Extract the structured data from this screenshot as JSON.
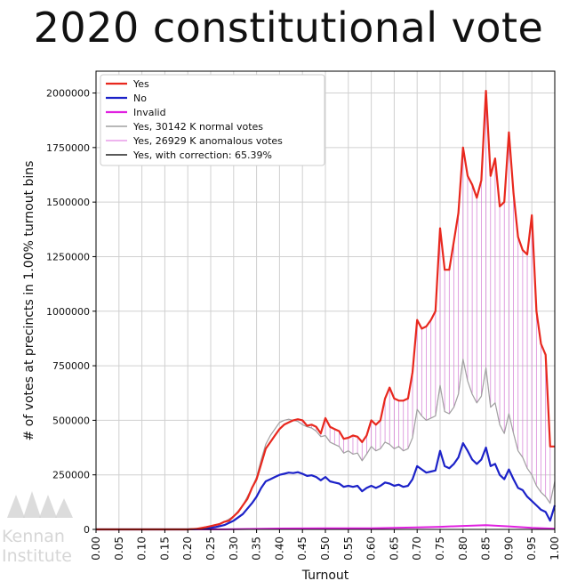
{
  "slide": {
    "title": "2020 constitutional vote"
  },
  "logo": {
    "line1": "Kennan",
    "line2": "Institute"
  },
  "chart_data": {
    "type": "line",
    "xlabel": "Turnout",
    "ylabel": "# of votes at precincts in 1.00% turnout bins",
    "xlim": [
      0.0,
      1.0
    ],
    "ylim": [
      0,
      2100000
    ],
    "grid": true,
    "legend_position": "top-left",
    "x_ticks": [
      "0.00",
      "0.05",
      "0.10",
      "0.15",
      "0.20",
      "0.25",
      "0.30",
      "0.35",
      "0.40",
      "0.45",
      "0.50",
      "0.55",
      "0.60",
      "0.65",
      "0.70",
      "0.75",
      "0.80",
      "0.85",
      "0.90",
      "0.95",
      "1.00"
    ],
    "y_ticks": [
      "0",
      "250000",
      "500000",
      "750000",
      "1000000",
      "1250000",
      "1500000",
      "1750000",
      "2000000"
    ],
    "legend": [
      {
        "label": "Yes",
        "color": "#e8281e",
        "style": "line"
      },
      {
        "label": "No",
        "color": "#1c22c8",
        "style": "line"
      },
      {
        "label": "Invalid",
        "color": "#e020e0",
        "style": "line"
      },
      {
        "label": "Yes, 30142 K normal votes",
        "color": "#a0a0a0",
        "style": "line"
      },
      {
        "label": "Yes, 26929 K anomalous votes",
        "color": "#e89be8",
        "style": "line"
      },
      {
        "label": "Yes, with correction: 65.39%",
        "color": "#222222",
        "style": "line"
      }
    ],
    "series": [
      {
        "name": "Yes",
        "color": "#e8281e",
        "points": [
          [
            0.0,
            0
          ],
          [
            0.2,
            0
          ],
          [
            0.22,
            3000
          ],
          [
            0.24,
            10000
          ],
          [
            0.25,
            15000
          ],
          [
            0.26,
            20000
          ],
          [
            0.27,
            25000
          ],
          [
            0.28,
            35000
          ],
          [
            0.29,
            40000
          ],
          [
            0.3,
            60000
          ],
          [
            0.31,
            80000
          ],
          [
            0.32,
            110000
          ],
          [
            0.33,
            140000
          ],
          [
            0.34,
            190000
          ],
          [
            0.35,
            230000
          ],
          [
            0.36,
            300000
          ],
          [
            0.37,
            370000
          ],
          [
            0.38,
            400000
          ],
          [
            0.39,
            430000
          ],
          [
            0.4,
            460000
          ],
          [
            0.41,
            480000
          ],
          [
            0.42,
            490000
          ],
          [
            0.43,
            500000
          ],
          [
            0.44,
            505000
          ],
          [
            0.45,
            500000
          ],
          [
            0.46,
            475000
          ],
          [
            0.47,
            480000
          ],
          [
            0.48,
            470000
          ],
          [
            0.49,
            440000
          ],
          [
            0.5,
            510000
          ],
          [
            0.51,
            470000
          ],
          [
            0.52,
            460000
          ],
          [
            0.53,
            450000
          ],
          [
            0.54,
            415000
          ],
          [
            0.55,
            420000
          ],
          [
            0.56,
            430000
          ],
          [
            0.57,
            425000
          ],
          [
            0.58,
            400000
          ],
          [
            0.59,
            430000
          ],
          [
            0.6,
            500000
          ],
          [
            0.61,
            480000
          ],
          [
            0.62,
            500000
          ],
          [
            0.63,
            600000
          ],
          [
            0.64,
            650000
          ],
          [
            0.65,
            600000
          ],
          [
            0.66,
            590000
          ],
          [
            0.67,
            590000
          ],
          [
            0.68,
            600000
          ],
          [
            0.69,
            720000
          ],
          [
            0.7,
            960000
          ],
          [
            0.71,
            920000
          ],
          [
            0.72,
            930000
          ],
          [
            0.73,
            960000
          ],
          [
            0.74,
            1000000
          ],
          [
            0.75,
            1380000
          ],
          [
            0.76,
            1190000
          ],
          [
            0.77,
            1190000
          ],
          [
            0.78,
            1320000
          ],
          [
            0.79,
            1450000
          ],
          [
            0.8,
            1750000
          ],
          [
            0.81,
            1620000
          ],
          [
            0.82,
            1580000
          ],
          [
            0.83,
            1520000
          ],
          [
            0.84,
            1600000
          ],
          [
            0.85,
            2010000
          ],
          [
            0.86,
            1620000
          ],
          [
            0.87,
            1700000
          ],
          [
            0.88,
            1480000
          ],
          [
            0.89,
            1500000
          ],
          [
            0.9,
            1820000
          ],
          [
            0.91,
            1540000
          ],
          [
            0.92,
            1340000
          ],
          [
            0.93,
            1280000
          ],
          [
            0.94,
            1260000
          ],
          [
            0.95,
            1440000
          ],
          [
            0.96,
            1000000
          ],
          [
            0.97,
            850000
          ],
          [
            0.98,
            800000
          ],
          [
            0.99,
            380000
          ],
          [
            1.0,
            380000
          ]
        ]
      },
      {
        "name": "No",
        "color": "#1c22c8",
        "points": [
          [
            0.0,
            0
          ],
          [
            0.2,
            0
          ],
          [
            0.22,
            2000
          ],
          [
            0.24,
            5000
          ],
          [
            0.26,
            10000
          ],
          [
            0.28,
            20000
          ],
          [
            0.3,
            40000
          ],
          [
            0.32,
            70000
          ],
          [
            0.34,
            120000
          ],
          [
            0.35,
            150000
          ],
          [
            0.36,
            190000
          ],
          [
            0.37,
            220000
          ],
          [
            0.38,
            230000
          ],
          [
            0.39,
            240000
          ],
          [
            0.4,
            250000
          ],
          [
            0.41,
            255000
          ],
          [
            0.42,
            260000
          ],
          [
            0.43,
            258000
          ],
          [
            0.44,
            262000
          ],
          [
            0.45,
            255000
          ],
          [
            0.46,
            245000
          ],
          [
            0.47,
            248000
          ],
          [
            0.48,
            240000
          ],
          [
            0.49,
            225000
          ],
          [
            0.5,
            240000
          ],
          [
            0.51,
            220000
          ],
          [
            0.52,
            215000
          ],
          [
            0.53,
            210000
          ],
          [
            0.54,
            195000
          ],
          [
            0.55,
            200000
          ],
          [
            0.56,
            195000
          ],
          [
            0.57,
            200000
          ],
          [
            0.58,
            175000
          ],
          [
            0.59,
            190000
          ],
          [
            0.6,
            200000
          ],
          [
            0.61,
            190000
          ],
          [
            0.62,
            200000
          ],
          [
            0.63,
            215000
          ],
          [
            0.64,
            210000
          ],
          [
            0.65,
            200000
          ],
          [
            0.66,
            205000
          ],
          [
            0.67,
            195000
          ],
          [
            0.68,
            200000
          ],
          [
            0.69,
            230000
          ],
          [
            0.7,
            290000
          ],
          [
            0.71,
            275000
          ],
          [
            0.72,
            260000
          ],
          [
            0.73,
            265000
          ],
          [
            0.74,
            270000
          ],
          [
            0.75,
            360000
          ],
          [
            0.76,
            290000
          ],
          [
            0.77,
            280000
          ],
          [
            0.78,
            300000
          ],
          [
            0.79,
            330000
          ],
          [
            0.8,
            395000
          ],
          [
            0.81,
            360000
          ],
          [
            0.82,
            320000
          ],
          [
            0.83,
            300000
          ],
          [
            0.84,
            320000
          ],
          [
            0.85,
            375000
          ],
          [
            0.86,
            290000
          ],
          [
            0.87,
            300000
          ],
          [
            0.88,
            250000
          ],
          [
            0.89,
            230000
          ],
          [
            0.9,
            275000
          ],
          [
            0.91,
            230000
          ],
          [
            0.92,
            190000
          ],
          [
            0.93,
            180000
          ],
          [
            0.94,
            150000
          ],
          [
            0.95,
            130000
          ],
          [
            0.96,
            110000
          ],
          [
            0.97,
            90000
          ],
          [
            0.98,
            80000
          ],
          [
            0.99,
            40000
          ],
          [
            1.0,
            110000
          ]
        ]
      },
      {
        "name": "Invalid",
        "color": "#e020e0",
        "points": [
          [
            0.0,
            0
          ],
          [
            0.25,
            0
          ],
          [
            0.3,
            1000
          ],
          [
            0.4,
            4000
          ],
          [
            0.5,
            5000
          ],
          [
            0.6,
            5000
          ],
          [
            0.7,
            9000
          ],
          [
            0.75,
            12000
          ],
          [
            0.8,
            16000
          ],
          [
            0.85,
            19000
          ],
          [
            0.9,
            14000
          ],
          [
            0.95,
            7000
          ],
          [
            1.0,
            3000
          ]
        ]
      },
      {
        "name": "Yes, 30142 K normal votes",
        "color": "#a0a0a0",
        "points": [
          [
            0.0,
            0
          ],
          [
            0.2,
            0
          ],
          [
            0.22,
            3000
          ],
          [
            0.24,
            10000
          ],
          [
            0.26,
            20000
          ],
          [
            0.28,
            35000
          ],
          [
            0.3,
            60000
          ],
          [
            0.32,
            110000
          ],
          [
            0.34,
            190000
          ],
          [
            0.35,
            240000
          ],
          [
            0.36,
            320000
          ],
          [
            0.37,
            390000
          ],
          [
            0.38,
            430000
          ],
          [
            0.39,
            460000
          ],
          [
            0.4,
            490000
          ],
          [
            0.41,
            500000
          ],
          [
            0.42,
            505000
          ],
          [
            0.43,
            500000
          ],
          [
            0.44,
            495000
          ],
          [
            0.45,
            480000
          ],
          [
            0.46,
            470000
          ],
          [
            0.47,
            465000
          ],
          [
            0.48,
            450000
          ],
          [
            0.49,
            425000
          ],
          [
            0.5,
            430000
          ],
          [
            0.51,
            400000
          ],
          [
            0.52,
            390000
          ],
          [
            0.53,
            380000
          ],
          [
            0.54,
            350000
          ],
          [
            0.55,
            360000
          ],
          [
            0.56,
            345000
          ],
          [
            0.57,
            350000
          ],
          [
            0.58,
            315000
          ],
          [
            0.59,
            345000
          ],
          [
            0.6,
            380000
          ],
          [
            0.61,
            360000
          ],
          [
            0.62,
            370000
          ],
          [
            0.63,
            400000
          ],
          [
            0.64,
            390000
          ],
          [
            0.65,
            370000
          ],
          [
            0.66,
            380000
          ],
          [
            0.67,
            360000
          ],
          [
            0.68,
            370000
          ],
          [
            0.69,
            420000
          ],
          [
            0.7,
            550000
          ],
          [
            0.71,
            520000
          ],
          [
            0.72,
            500000
          ],
          [
            0.73,
            510000
          ],
          [
            0.74,
            520000
          ],
          [
            0.75,
            660000
          ],
          [
            0.76,
            540000
          ],
          [
            0.77,
            530000
          ],
          [
            0.78,
            560000
          ],
          [
            0.79,
            620000
          ],
          [
            0.8,
            780000
          ],
          [
            0.81,
            680000
          ],
          [
            0.82,
            620000
          ],
          [
            0.83,
            580000
          ],
          [
            0.84,
            610000
          ],
          [
            0.85,
            740000
          ],
          [
            0.86,
            560000
          ],
          [
            0.87,
            580000
          ],
          [
            0.88,
            480000
          ],
          [
            0.89,
            440000
          ],
          [
            0.9,
            530000
          ],
          [
            0.91,
            440000
          ],
          [
            0.92,
            360000
          ],
          [
            0.93,
            330000
          ],
          [
            0.94,
            280000
          ],
          [
            0.95,
            250000
          ],
          [
            0.96,
            200000
          ],
          [
            0.97,
            170000
          ],
          [
            0.98,
            150000
          ],
          [
            0.99,
            120000
          ],
          [
            1.0,
            220000
          ]
        ]
      }
    ]
  }
}
